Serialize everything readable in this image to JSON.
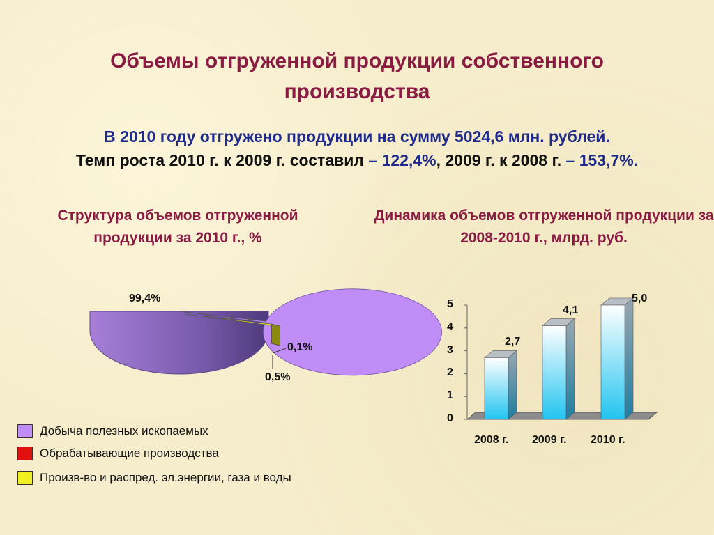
{
  "title": "Объемы отгруженной продукции собственного производства",
  "summary": {
    "line1": "В 2010 году отгружено продукции на сумму 5024,6 млн. рублей.",
    "line2_a": "Темп роста 2010 г. к 2009 г. составил ",
    "line2_b": "– 122,4%",
    "line2_c": ", 2009 г. к 2008 г. ",
    "line2_d": "– 153,7%."
  },
  "chart_data": [
    {
      "type": "pie",
      "title": "Структура объемов отгруженной продукции за 2010 г., %",
      "categories": [
        "Добыча полезных ископаемых",
        "Обрабатывающие производства",
        "Произв-во и распред. эл.энергии, газа и воды"
      ],
      "values": [
        99.4,
        0.1,
        0.5
      ],
      "labels": [
        "99,4%",
        "0,1%",
        "0,5%"
      ],
      "colors": [
        "#c08cf5",
        "#e01010",
        "#f0f020"
      ],
      "legend": "bottom-left"
    },
    {
      "type": "bar",
      "title": "Динамика объемов отгруженной продукции за 2008-2010 г.,  млрд. руб.",
      "categories": [
        "2008 г.",
        "2009 г.",
        "2010 г."
      ],
      "values": [
        2.7,
        4.1,
        5.0
      ],
      "labels": [
        "2,7",
        "4,1",
        "5,0"
      ],
      "yticks": [
        "0",
        "1",
        "2",
        "3",
        "4",
        "5"
      ],
      "ylim": [
        0,
        5
      ],
      "color": "#2cc6f0"
    }
  ]
}
